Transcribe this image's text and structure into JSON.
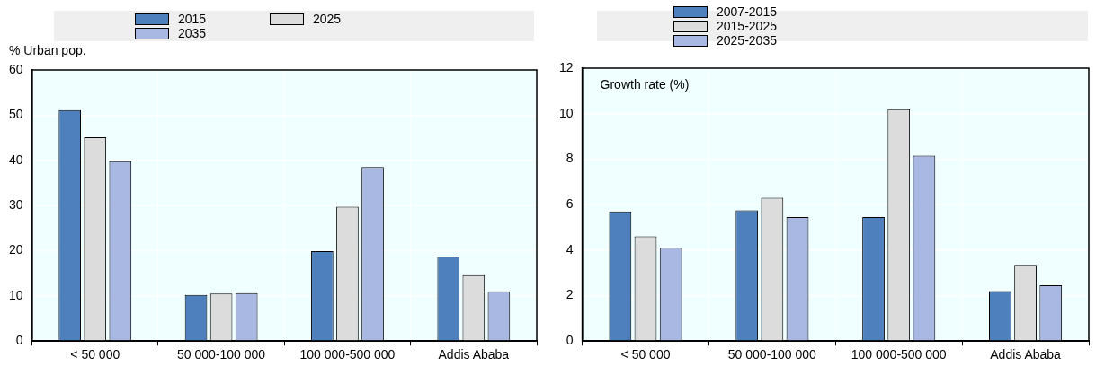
{
  "chart_data": [
    {
      "type": "bar",
      "ylabel": "% Urban pop.",
      "categories": [
        "< 50 000",
        "50 000-100 000",
        "100 000-500 000",
        "Addis Ababa"
      ],
      "series": [
        {
          "name": "2015",
          "color": "#4e80bd",
          "values": [
            51.1,
            10.2,
            19.9,
            18.7
          ]
        },
        {
          "name": "2025",
          "color": "#dcdcdc",
          "values": [
            45.1,
            10.5,
            29.7,
            14.6
          ]
        },
        {
          "name": "2035",
          "color": "#a8b8e3",
          "values": [
            39.8,
            10.6,
            38.5,
            11.0
          ]
        }
      ],
      "ylim": [
        0,
        60
      ],
      "yticks": [
        0,
        10,
        20,
        30,
        40,
        50,
        60
      ],
      "grid": true,
      "legend": "top"
    },
    {
      "type": "bar",
      "ylabel": "Growth rate (%)",
      "categories": [
        "< 50 000",
        "50 000-100 000",
        "100 000-500 000",
        "Addis Ababa"
      ],
      "series": [
        {
          "name": "2007-2015",
          "color": "#4e80bd",
          "values": [
            5.7,
            5.75,
            5.45,
            2.2
          ]
        },
        {
          "name": "2015-2025",
          "color": "#dcdcdc",
          "values": [
            4.6,
            6.3,
            10.2,
            3.35
          ]
        },
        {
          "name": "2025-2035",
          "color": "#a8b8e3",
          "values": [
            4.1,
            5.45,
            8.15,
            2.45
          ]
        }
      ],
      "ylim": [
        0,
        12
      ],
      "yticks": [
        0,
        2,
        4,
        6,
        8,
        10,
        12
      ],
      "grid": true,
      "legend": "top"
    }
  ]
}
